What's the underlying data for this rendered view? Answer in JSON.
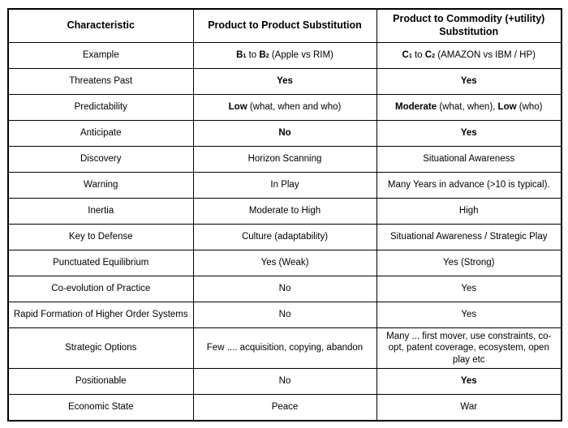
{
  "page": {
    "background_color": "#ffffff",
    "border_color": "#000000",
    "text_color": "#000000"
  },
  "table": {
    "columns": [
      "Characteristic",
      "Product to Product Substitution",
      "Product to Commodity (+utility) Substitution"
    ],
    "rows": [
      {
        "characteristic": "Example",
        "product_to_product": [
          {
            "t": "B",
            "b": true
          },
          {
            "t": "1",
            "b": true,
            "s": true
          },
          {
            "t": " to "
          },
          {
            "t": "B",
            "b": true
          },
          {
            "t": "2",
            "b": true,
            "s": true
          },
          {
            "t": " (Apple vs RIM)"
          }
        ],
        "product_to_commodity": [
          {
            "t": "C",
            "b": true
          },
          {
            "t": "1",
            "b": true,
            "s": true
          },
          {
            "t": " to "
          },
          {
            "t": "C",
            "b": true
          },
          {
            "t": "2",
            "b": true,
            "s": true
          },
          {
            "t": " (AMAZON vs IBM / HP)"
          }
        ]
      },
      {
        "characteristic": "Threatens Past",
        "product_to_product": [
          {
            "t": "Yes",
            "b": true
          }
        ],
        "product_to_commodity": [
          {
            "t": "Yes",
            "b": true
          }
        ]
      },
      {
        "characteristic": "Predictability",
        "product_to_product": [
          {
            "t": "Low",
            "b": true
          },
          {
            "t": " (what, when and who)"
          }
        ],
        "product_to_commodity": [
          {
            "t": "Moderate",
            "b": true
          },
          {
            "t": " (what, when), "
          },
          {
            "t": "Low",
            "b": true
          },
          {
            "t": " (who)"
          }
        ]
      },
      {
        "characteristic": "Anticipate",
        "product_to_product": [
          {
            "t": "No",
            "b": true
          }
        ],
        "product_to_commodity": [
          {
            "t": "Yes",
            "b": true
          }
        ]
      },
      {
        "characteristic": "Discovery",
        "product_to_product": "Horizon Scanning",
        "product_to_commodity": "Situational Awareness"
      },
      {
        "characteristic": "Warning",
        "product_to_product": "In Play",
        "product_to_commodity": "Many Years in advance (>10 is typical)."
      },
      {
        "characteristic": "Inertia",
        "product_to_product": "Moderate to High",
        "product_to_commodity": "High"
      },
      {
        "characteristic": "Key to Defense",
        "product_to_product": "Culture (adaptability)",
        "product_to_commodity": "Situational Awareness / Strategic Play"
      },
      {
        "characteristic": "Punctuated Equilibrium",
        "product_to_product": "Yes (Weak)",
        "product_to_commodity": "Yes (Strong)"
      },
      {
        "characteristic": "Co-evolution of Practice",
        "product_to_product": "No",
        "product_to_commodity": "Yes"
      },
      {
        "characteristic": "Rapid Formation of Higher Order Systems",
        "product_to_product": "No",
        "product_to_commodity": "Yes"
      },
      {
        "characteristic": "Strategic Options",
        "product_to_product": "Few .... acquisition, copying, abandon",
        "product_to_commodity": "Many ... first mover, use constraints, co-opt, patent coverage, ecosystem, open play etc"
      },
      {
        "characteristic": "Positionable",
        "product_to_product": "No",
        "product_to_commodity": [
          {
            "t": "Yes",
            "b": true
          }
        ]
      },
      {
        "characteristic": "Economic State",
        "product_to_product": "Peace",
        "product_to_commodity": "War"
      }
    ]
  }
}
